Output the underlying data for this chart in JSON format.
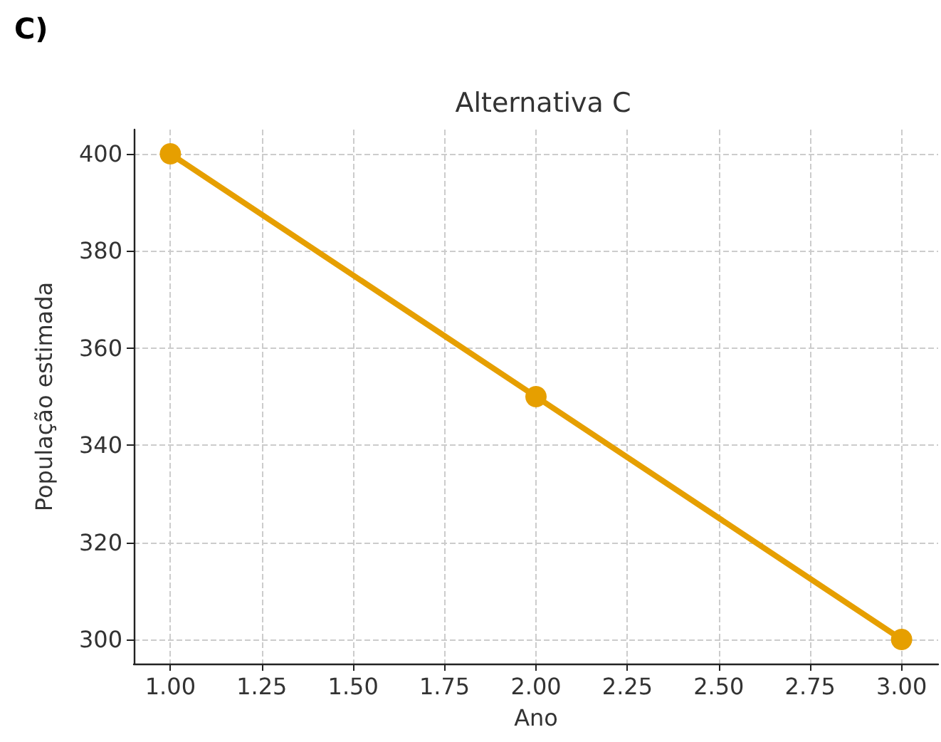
{
  "chart_data": {
    "type": "line",
    "title": "Alternativa C",
    "xlabel": "Ano",
    "ylabel": "População estimada",
    "annotations": [
      "C)"
    ],
    "x": [
      1,
      2,
      3
    ],
    "series": [
      {
        "color": "#e69f00",
        "values": [
          400,
          350,
          300
        ]
      }
    ],
    "xlim": [
      0.9,
      3.1
    ],
    "ylim": [
      295,
      405
    ],
    "xticks": [
      {
        "value": 1,
        "label": "1.00"
      },
      {
        "value": 1.25,
        "label": "1.25"
      },
      {
        "value": 1.5,
        "label": "1.50"
      },
      {
        "value": 1.75,
        "label": "1.75"
      },
      {
        "value": 2,
        "label": "2.00"
      },
      {
        "value": 2.25,
        "label": "2.25"
      },
      {
        "value": 2.5,
        "label": "2.50"
      },
      {
        "value": 2.75,
        "label": "2.75"
      },
      {
        "value": 3,
        "label": "3.00"
      }
    ],
    "yticks": [
      300,
      320,
      340,
      360,
      380,
      400
    ],
    "grid": true,
    "marker": "circle",
    "line_style": "solid"
  }
}
